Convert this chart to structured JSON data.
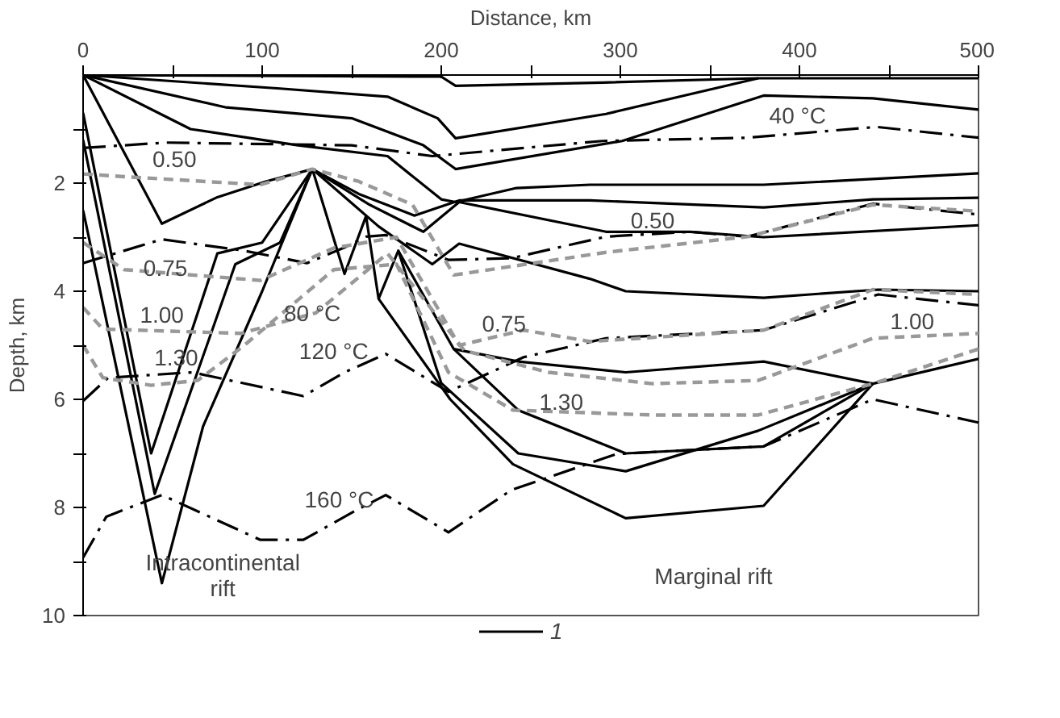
{
  "chart_data": {
    "type": "line",
    "xlabel": "Distance, km",
    "ylabel": "Depth, km",
    "xlim": [
      0,
      500
    ],
    "ylim": [
      10,
      0
    ],
    "xticks": [
      0,
      {
        "value": 50,
        "label": null
      },
      100,
      {
        "value": 150,
        "label": null
      },
      200,
      {
        "value": 250,
        "label": null
      },
      300,
      {
        "value": 350,
        "label": null
      },
      400,
      {
        "value": 450,
        "label": null
      },
      500
    ],
    "yticks": [
      {
        "value": 1,
        "label": null
      },
      2,
      {
        "value": 3,
        "label": null
      },
      4,
      {
        "value": 5,
        "label": null
      },
      6,
      {
        "value": 7,
        "label": null
      },
      8,
      {
        "value": 9,
        "label": null
      },
      10
    ],
    "grid": false,
    "legend": "bottom",
    "marker": "none",
    "series": [
      {
        "name": "1",
        "color": "#000000",
        "line_style": "solid",
        "x": [
          0,
          200,
          208,
          290,
          377,
          500
        ],
        "values": [
          0,
          0.03,
          0.2,
          0.14,
          0.06,
          0.06
        ]
      },
      {
        "color": "#000000",
        "line_style": "solid",
        "x": [
          0,
          110,
          170,
          198,
          208,
          292,
          377
        ],
        "values": [
          0,
          0.25,
          0.4,
          0.8,
          1.17,
          0.72,
          0.06
        ]
      },
      {
        "color": "#000000",
        "line_style": "solid",
        "x": [
          0,
          80,
          150,
          190,
          208,
          301,
          380,
          441,
          500
        ],
        "values": [
          0,
          0.6,
          0.8,
          1.3,
          1.74,
          1.22,
          0.38,
          0.43,
          0.64
        ]
      },
      {
        "color": "#000000",
        "line_style": "solid",
        "x": [
          0,
          60,
          120,
          170,
          200,
          208,
          242,
          283,
          380,
          500
        ],
        "values": [
          0,
          1.0,
          1.3,
          1.5,
          2.3,
          2.35,
          2.09,
          2.03,
          2.03,
          1.82
        ]
      },
      {
        "color": "#000000",
        "line_style": "solid",
        "x": [
          0,
          44,
          75,
          102,
          128,
          154,
          185,
          210,
          283,
          380,
          441,
          500
        ],
        "values": [
          0,
          2.75,
          2.26,
          1.97,
          1.74,
          2.2,
          2.6,
          2.32,
          2.32,
          2.45,
          2.3,
          2.27
        ]
      },
      {
        "color": "#000000",
        "line_style": "solid",
        "x": [
          128,
          160,
          190,
          210,
          292,
          339,
          380,
          500
        ],
        "values": [
          1.74,
          2.4,
          2.9,
          2.35,
          2.9,
          2.9,
          3.0,
          2.78
        ]
      },
      {
        "color": "#000000",
        "line_style": "solid",
        "x": [
          128,
          165,
          195,
          210,
          283,
          303,
          380,
          444,
          500
        ],
        "values": [
          1.74,
          2.8,
          3.5,
          3.12,
          3.77,
          4.0,
          4.12,
          3.97,
          4.0
        ]
      },
      {
        "color": "#000000",
        "line_style": "solid",
        "x": [
          128,
          146,
          158,
          165,
          176,
          207,
          243,
          303,
          380,
          441,
          500
        ],
        "values": [
          1.74,
          3.68,
          2.61,
          4.14,
          3.25,
          5.07,
          5.3,
          5.5,
          5.3,
          5.71,
          5.25
        ]
      },
      {
        "color": "#000000",
        "line_style": "solid",
        "x": [
          176,
          200,
          243,
          303,
          377,
          441
        ],
        "values": [
          3.25,
          5.7,
          7.0,
          7.33,
          6.58,
          5.71
        ]
      },
      {
        "color": "#000000",
        "line_style": "solid",
        "x": [
          165,
          205,
          240,
          303,
          380,
          441
        ],
        "values": [
          4.14,
          6.0,
          7.2,
          8.2,
          7.97,
          5.71
        ]
      },
      {
        "color": "#000000",
        "line_style": "solid",
        "x": [
          207,
          243,
          303,
          380,
          441
        ],
        "values": [
          5.07,
          6.2,
          7.0,
          6.87,
          5.71
        ]
      },
      {
        "color": "#000000",
        "line_style": "solid",
        "x": [
          0,
          38,
          75,
          100,
          128
        ],
        "values": [
          0.7,
          7.0,
          3.3,
          3.1,
          1.74
        ]
      },
      {
        "color": "#000000",
        "line_style": "solid",
        "x": [
          0,
          40,
          85,
          110,
          128
        ],
        "values": [
          1.2,
          7.75,
          3.5,
          3.1,
          1.74
        ]
      },
      {
        "color": "#000000",
        "line_style": "solid",
        "x": [
          0,
          44,
          67,
          100,
          128
        ],
        "values": [
          2.5,
          9.4,
          6.5,
          4.0,
          1.74
        ]
      },
      {
        "color": "#000000",
        "line_style": "dashdot",
        "x": [
          0,
          46,
          150,
          195,
          290,
          371,
          443,
          500
        ],
        "values": [
          1.35,
          1.25,
          1.3,
          1.5,
          1.22,
          1.16,
          0.96,
          1.16
        ]
      },
      {
        "color": "#000000",
        "line_style": "dashdot",
        "x": [
          0,
          44,
          90,
          125,
          146,
          158,
          169,
          204,
          239,
          292,
          339,
          371,
          441,
          500
        ],
        "values": [
          3.48,
          3.04,
          3.25,
          3.48,
          3.19,
          2.99,
          2.96,
          3.42,
          3.39,
          2.99,
          2.9,
          2.99,
          2.38,
          2.58
        ]
      },
      {
        "color": "#000000",
        "line_style": "dashdot",
        "x": [
          0,
          14,
          61,
          123,
          146,
          169,
          204,
          246,
          292,
          380,
          444,
          500
        ],
        "values": [
          6.03,
          5.6,
          5.5,
          5.94,
          5.5,
          5.16,
          5.86,
          5.22,
          4.87,
          4.72,
          4.06,
          4.26
        ]
      },
      {
        "color": "#000000",
        "line_style": "dashdot",
        "x": [
          0,
          13,
          44,
          99,
          123,
          152,
          169,
          204,
          239,
          298,
          380,
          441,
          500
        ],
        "values": [
          8.93,
          8.17,
          7.77,
          8.6,
          8.6,
          8.06,
          7.77,
          8.46,
          7.68,
          7.01,
          6.87,
          6.0,
          6.43
        ]
      },
      {
        "color": "#999999",
        "line_style": "dashed",
        "x": [
          0,
          23,
          99,
          128,
          154,
          184,
          207,
          292,
          371,
          441,
          500
        ],
        "values": [
          1.83,
          1.88,
          2.03,
          1.74,
          1.97,
          2.4,
          3.7,
          3.28,
          2.99,
          2.4,
          2.52
        ]
      },
      {
        "color": "#999999",
        "line_style": "dashed",
        "x": [
          0,
          23,
          99,
          140,
          175,
          210,
          246,
          283,
          380,
          441,
          500
        ],
        "values": [
          3.1,
          3.6,
          3.8,
          3.2,
          3.0,
          5.0,
          4.72,
          4.93,
          4.72,
          3.97,
          4.06
        ]
      },
      {
        "color": "#999999",
        "line_style": "dashed",
        "x": [
          0,
          11,
          88,
          130,
          170,
          213,
          260,
          318,
          377,
          441,
          500
        ],
        "values": [
          4.3,
          4.7,
          4.78,
          4.4,
          3.3,
          5.1,
          5.5,
          5.71,
          5.65,
          4.87,
          4.78
        ]
      },
      {
        "color": "#999999",
        "line_style": "dashed",
        "x": [
          0,
          11,
          38,
          64,
          90,
          140,
          175,
          204,
          240,
          318,
          377,
          441,
          500
        ],
        "values": [
          5.0,
          5.6,
          5.74,
          5.65,
          5.0,
          3.6,
          3.5,
          5.5,
          6.2,
          6.29,
          6.29,
          5.71,
          5.07
        ]
      }
    ],
    "annotations": [
      "40 °C",
      "0.50",
      "0.50",
      "0.75",
      "80 °C",
      "1.00",
      "1.30",
      "120 °C",
      "0.75",
      "1.00",
      "1.30",
      "160 °C",
      "Intracontinental\nrift",
      "Marginal rift"
    ]
  }
}
